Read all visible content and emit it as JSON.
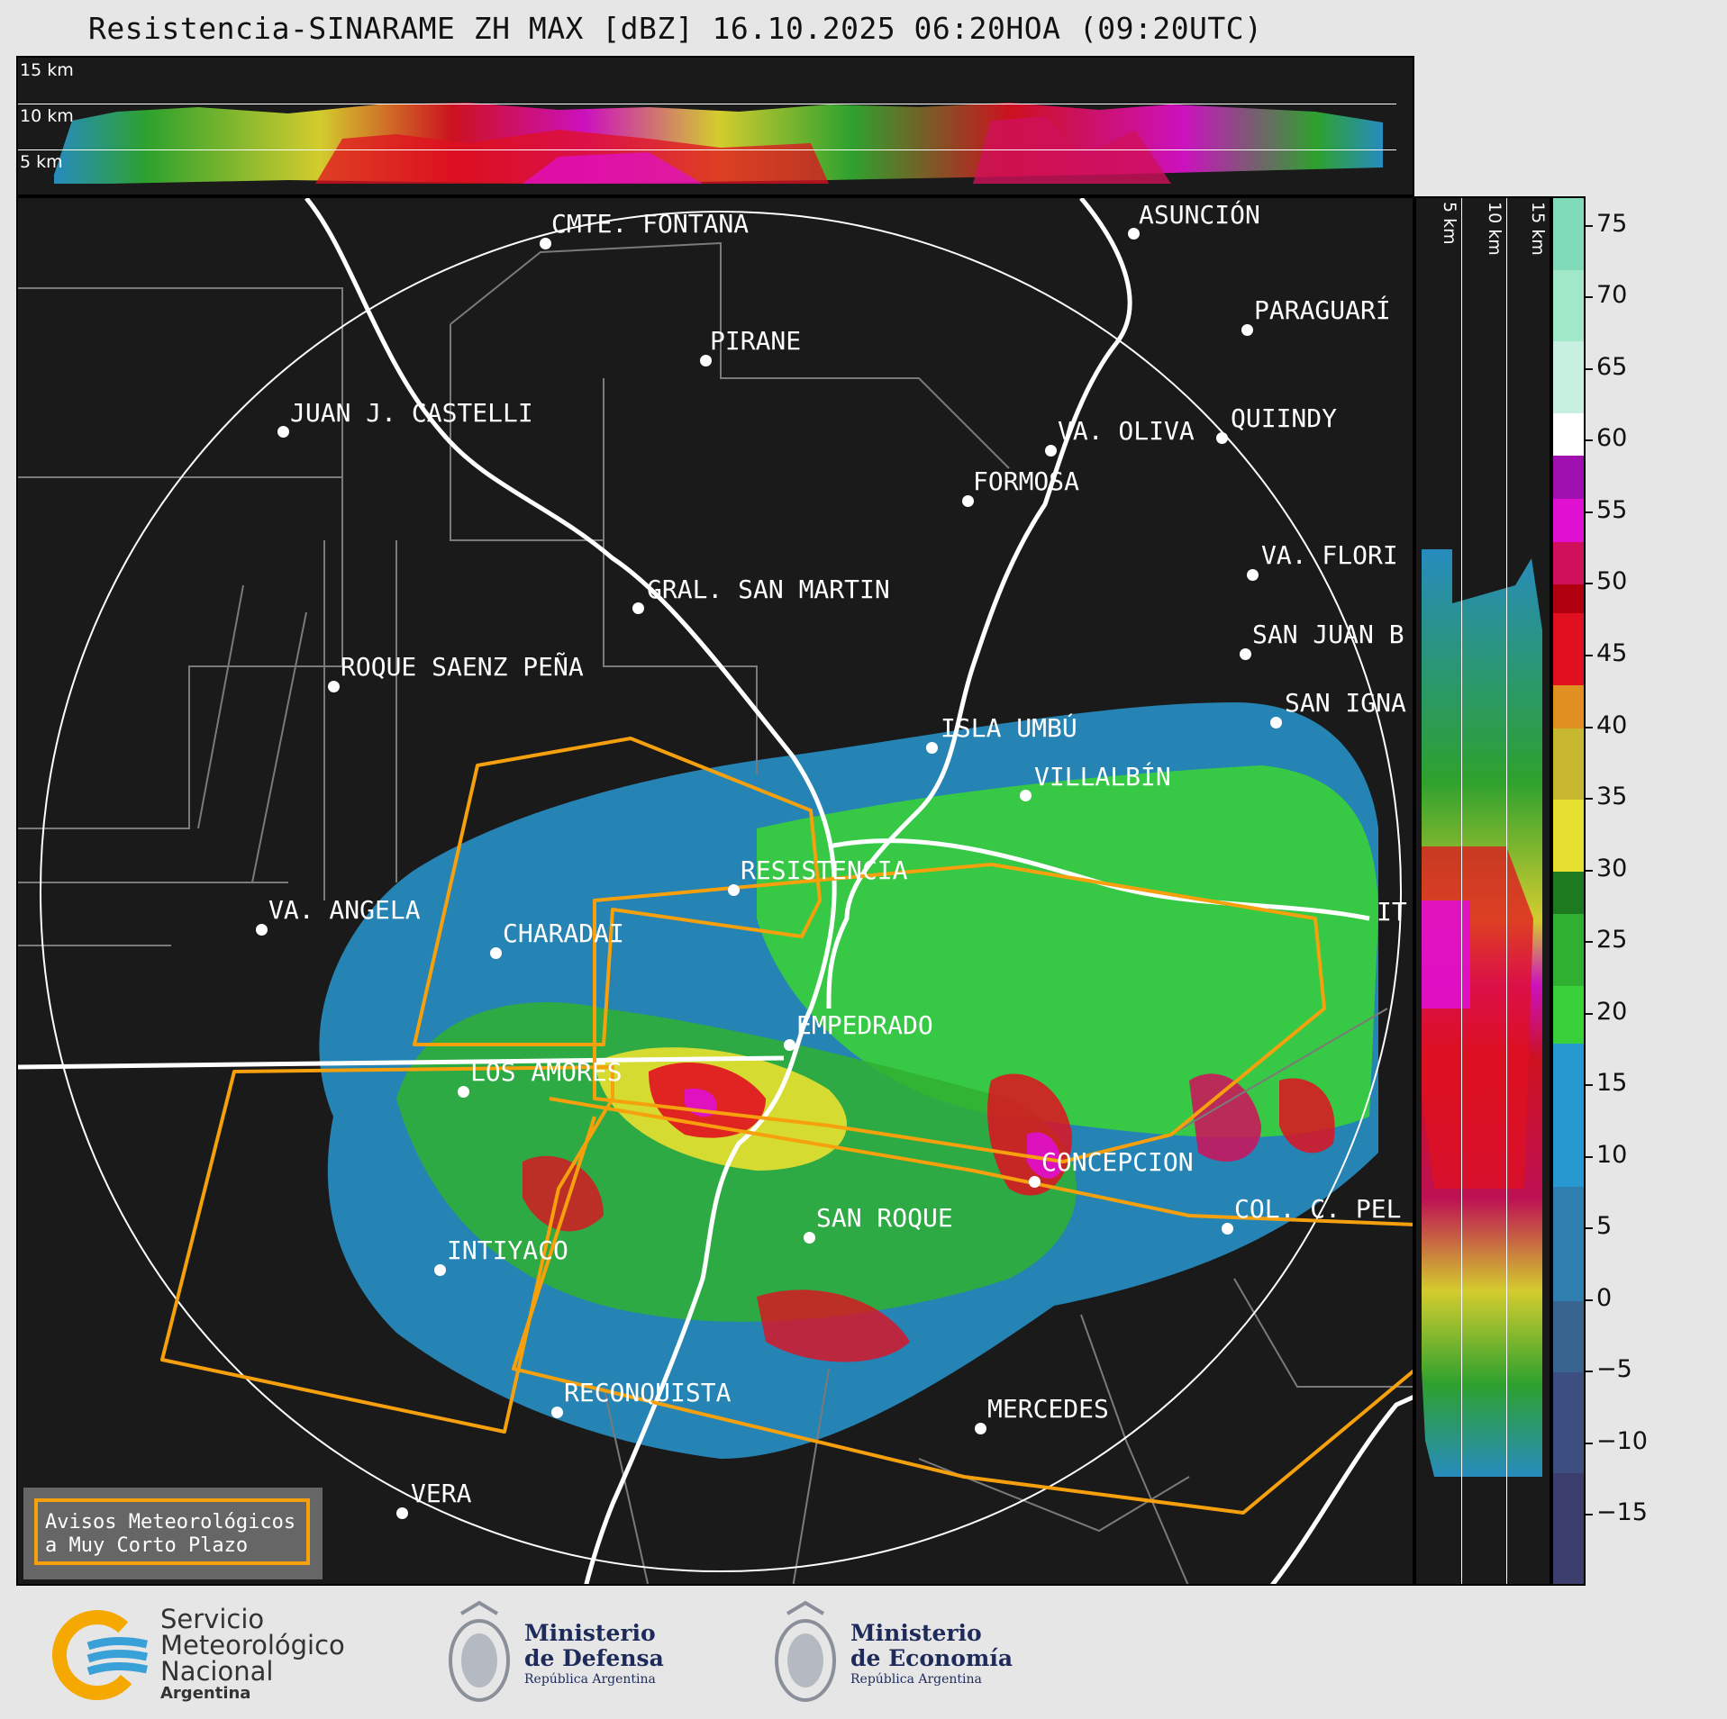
{
  "title": "Resistencia-SINARAME ZH MAX [dBZ] 16.10.2025 06:20HOA (09:20UTC)",
  "top_panel": {
    "height_labels": [
      "15 km",
      "10 km",
      "5 km"
    ]
  },
  "side_panel": {
    "height_labels": [
      "5 km",
      "10 km",
      "15 km"
    ]
  },
  "colorbar": {
    "unit": "dBZ",
    "min": -20,
    "max": 77,
    "ticks": [
      "75",
      "70",
      "65",
      "60",
      "55",
      "50",
      "45",
      "40",
      "35",
      "30",
      "25",
      "20",
      "15",
      "10",
      "5",
      "0",
      "−5",
      "−10",
      "−15"
    ],
    "tick_values": [
      75,
      70,
      65,
      60,
      55,
      50,
      45,
      40,
      35,
      30,
      25,
      20,
      15,
      10,
      5,
      0,
      -5,
      -10,
      -15
    ],
    "stops": [
      {
        "from": -20,
        "to": -12,
        "color": "#3c3f6e"
      },
      {
        "from": -12,
        "to": -5,
        "color": "#3d4f80"
      },
      {
        "from": -5,
        "to": 0,
        "color": "#3a6490"
      },
      {
        "from": 0,
        "to": 8,
        "color": "#2f7eb0"
      },
      {
        "from": 8,
        "to": 18,
        "color": "#2898d0"
      },
      {
        "from": 18,
        "to": 22,
        "color": "#3ad03a"
      },
      {
        "from": 22,
        "to": 27,
        "color": "#30b030"
      },
      {
        "from": 27,
        "to": 30,
        "color": "#1e7a1e"
      },
      {
        "from": 30,
        "to": 35,
        "color": "#e8e030"
      },
      {
        "from": 35,
        "to": 40,
        "color": "#c8b830"
      },
      {
        "from": 40,
        "to": 43,
        "color": "#e09020"
      },
      {
        "from": 43,
        "to": 48,
        "color": "#e01020"
      },
      {
        "from": 48,
        "to": 50,
        "color": "#b00010"
      },
      {
        "from": 50,
        "to": 53,
        "color": "#d0105a"
      },
      {
        "from": 53,
        "to": 56,
        "color": "#e010d0"
      },
      {
        "from": 56,
        "to": 59,
        "color": "#a010b0"
      },
      {
        "from": 59,
        "to": 62,
        "color": "#ffffff"
      },
      {
        "from": 62,
        "to": 67,
        "color": "#c8f0e0"
      },
      {
        "from": 67,
        "to": 72,
        "color": "#a0e8c8"
      },
      {
        "from": 72,
        "to": 77,
        "color": "#80dcb8"
      }
    ]
  },
  "cities": [
    {
      "name": "CMTE. FONTANA"
    },
    {
      "name": "ASUNCIÓN"
    },
    {
      "name": "PIRANE"
    },
    {
      "name": "PARAGUARÍ"
    },
    {
      "name": "JUAN J. CASTELLI"
    },
    {
      "name": "VA. OLIVA"
    },
    {
      "name": "QUIINDY"
    },
    {
      "name": "FORMOSA"
    },
    {
      "name": "VA. FLORI"
    },
    {
      "name": "GRAL. SAN MARTIN"
    },
    {
      "name": "SAN JUAN B"
    },
    {
      "name": "ROQUE SAENZ PEÑA"
    },
    {
      "name": "SAN IGNA"
    },
    {
      "name": "ISLA UMBÚ"
    },
    {
      "name": "VILLALBÍN"
    },
    {
      "name": "RESISTENCIA"
    },
    {
      "name": "VA. ANGELA"
    },
    {
      "name": "CHARADAI"
    },
    {
      "name": "IT"
    },
    {
      "name": "EMPEDRADO"
    },
    {
      "name": "LOS AMORES"
    },
    {
      "name": "CONCEPCION"
    },
    {
      "name": "COL. C. PEL"
    },
    {
      "name": "SAN ROQUE"
    },
    {
      "name": "INTIYACO"
    },
    {
      "name": "RECONQUISTA"
    },
    {
      "name": "MERCEDES"
    },
    {
      "name": "VERA"
    }
  ],
  "legend": {
    "line1": "Avisos Meteorológicos",
    "line2": "a Muy Corto Plazo",
    "color": "#f5a00c"
  },
  "logos": {
    "smn": {
      "line1": "Servicio",
      "line2": "Meteorológico",
      "line3": "Nacional",
      "line4": "Argentina"
    },
    "defensa": {
      "line1": "Ministerio",
      "line2": "de Defensa",
      "line3": "República Argentina"
    },
    "economia": {
      "line1": "Ministerio",
      "line2": "de Economía",
      "line3": "República Argentina"
    }
  }
}
